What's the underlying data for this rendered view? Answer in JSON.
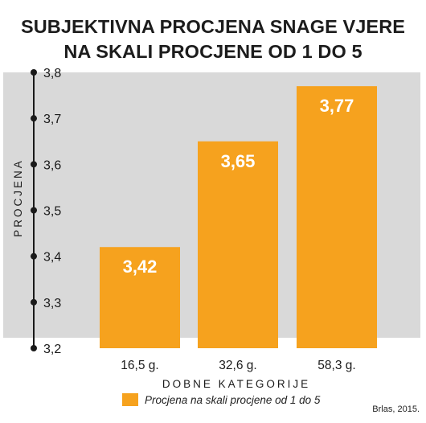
{
  "chart_data": {
    "type": "bar",
    "title": [
      "SUBJEKTIVNA PROCJENA SNAGE VJERE",
      "NA SKALI PROCJENE OD 1 DO 5"
    ],
    "categories": [
      "16,5 g.",
      "32,6 g.",
      "58,3 g."
    ],
    "series": [
      {
        "name": "Procjena na skali procjene od 1 do 5",
        "values": [
          3.42,
          3.65,
          3.77
        ],
        "labels": [
          "3,42",
          "3,65",
          "3,77"
        ]
      }
    ],
    "xlabel": "DOBNE KATEGORIJE",
    "ylabel": "PROCJENA",
    "ylim": [
      3.2,
      3.8
    ],
    "yticks": [
      3.2,
      3.3,
      3.4,
      3.5,
      3.6,
      3.7,
      3.8
    ],
    "ytick_labels": [
      "3,2",
      "3,3",
      "3,4",
      "3,5",
      "3,6",
      "3,7",
      "3,8"
    ],
    "legend": "bottom",
    "grid": false,
    "colors": {
      "bar": "#F6A21E",
      "plot_background": "#D9D9D9",
      "axis": "#1a1a1a",
      "bar_label": "#ffffff"
    }
  },
  "source": "Brlas, 2015."
}
